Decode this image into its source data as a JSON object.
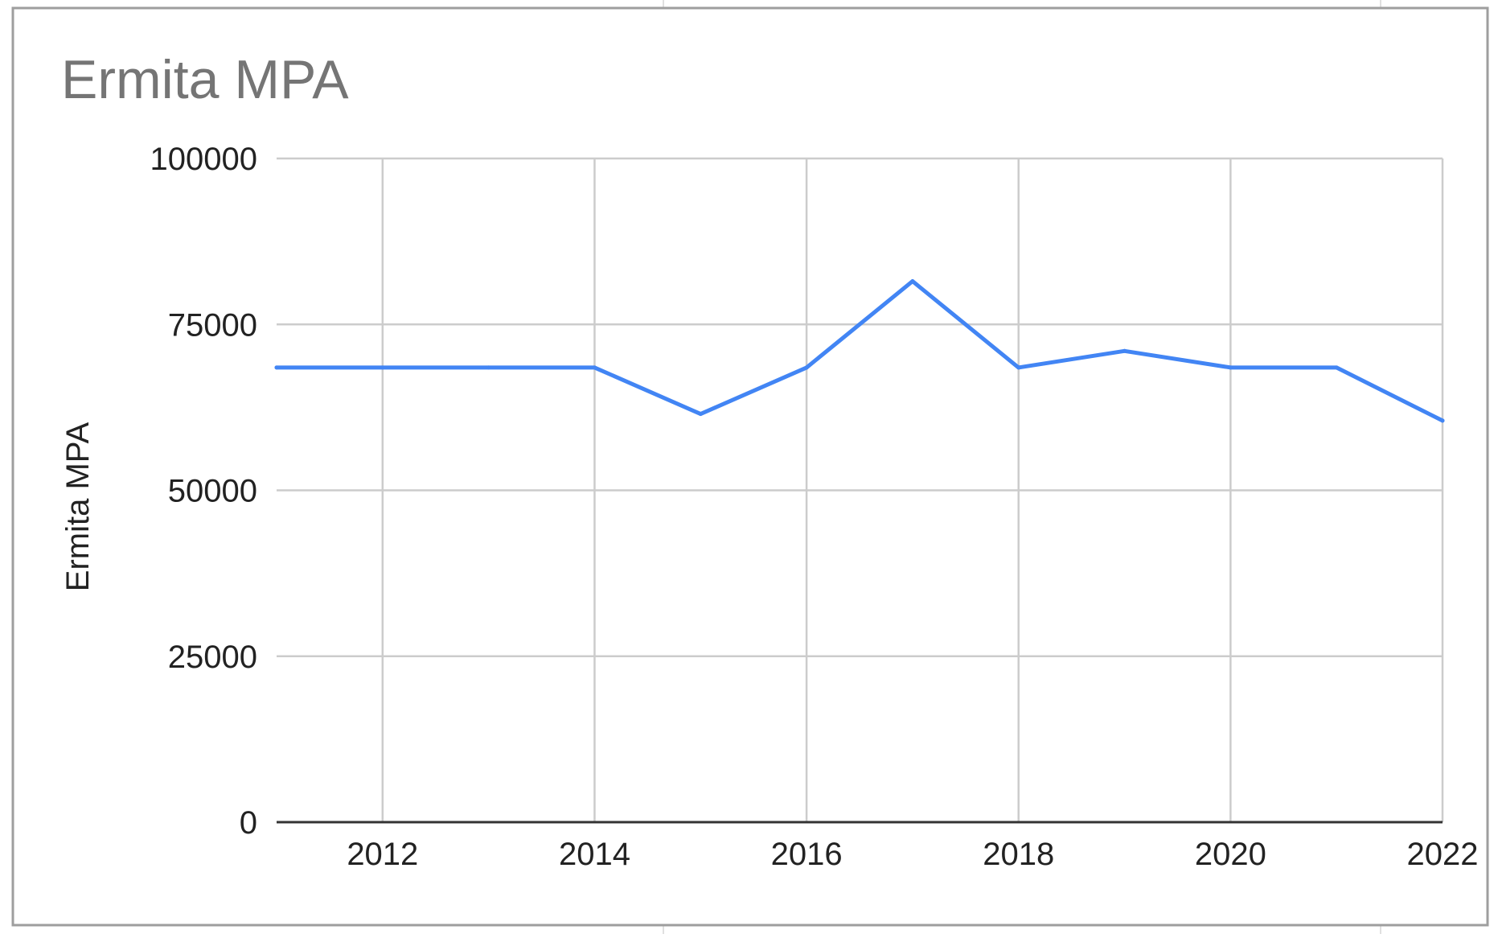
{
  "chart_data": {
    "type": "line",
    "title": "Ermita MPA",
    "xlabel": "",
    "ylabel": "Ermita MPA",
    "xlim": [
      2011,
      2022
    ],
    "ylim": [
      0,
      100000
    ],
    "x_ticks": [
      "2012",
      "2014",
      "2016",
      "2018",
      "2020",
      "2022"
    ],
    "y_ticks": [
      "0",
      "25000",
      "50000",
      "75000",
      "100000"
    ],
    "grid": true,
    "legend": "none",
    "colors": {
      "line": "#4285f4",
      "grid": "#cccccc",
      "axis": "#333333",
      "title": "#757575",
      "text": "#222222",
      "frame": "#9e9e9e"
    },
    "series": [
      {
        "x": [
          2011,
          2012,
          2013,
          2014,
          2015,
          2016,
          2017,
          2018,
          2019,
          2020,
          2021,
          2022
        ],
        "values": [
          68500,
          68500,
          68500,
          68500,
          61500,
          68500,
          81500,
          68500,
          71000,
          68500,
          68500,
          60500
        ]
      }
    ]
  }
}
